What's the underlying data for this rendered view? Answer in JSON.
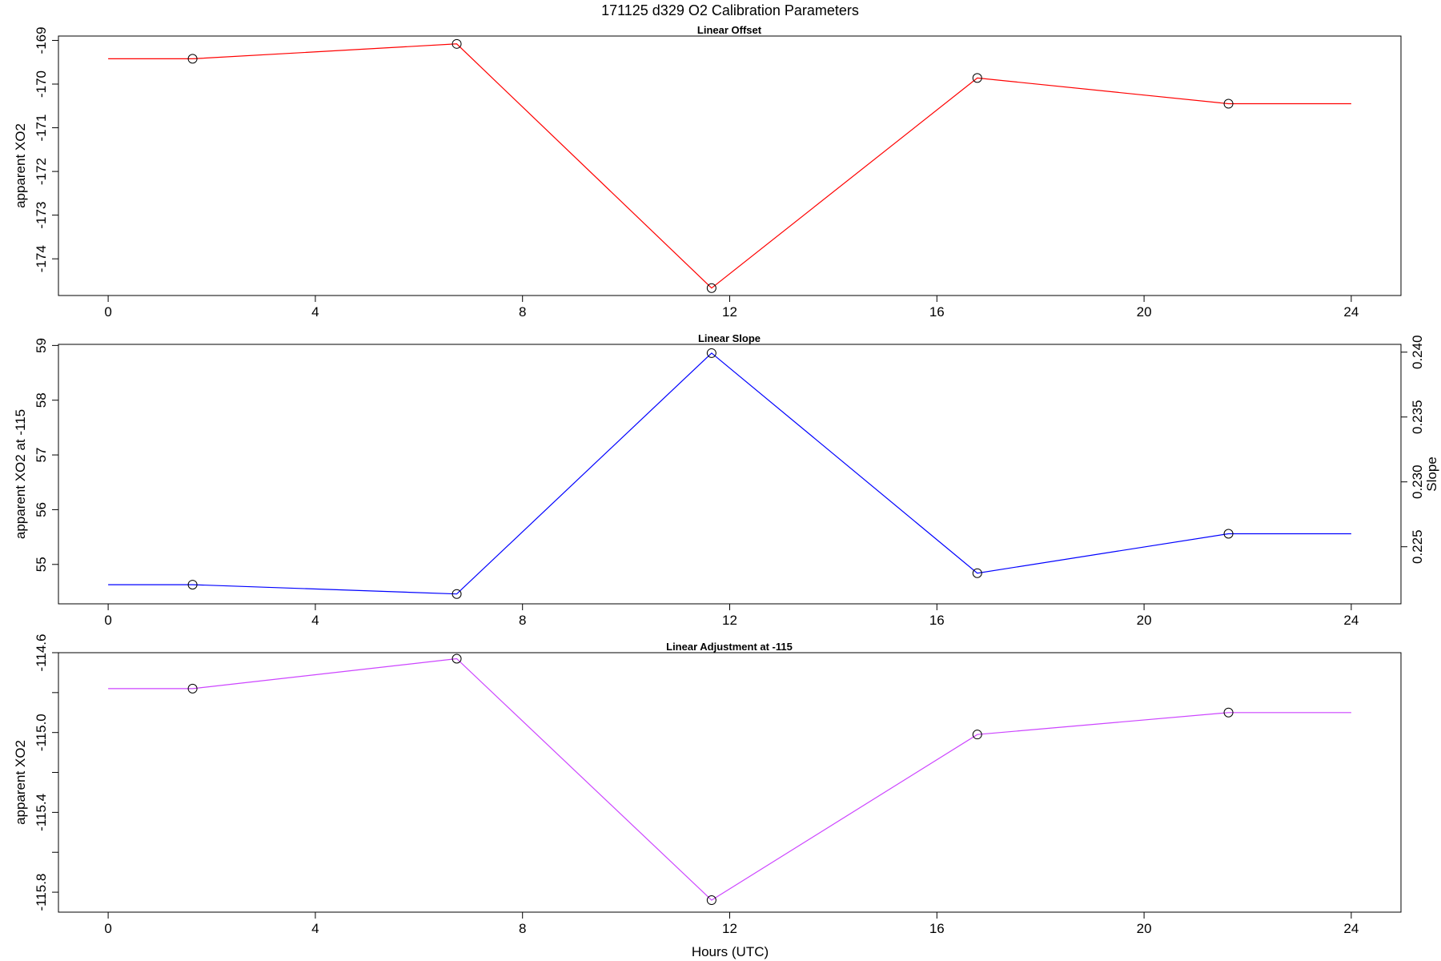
{
  "figure_title": "171125   d329   O2 Calibration Parameters",
  "xlabel": "Hours (UTC)",
  "x_ticks": [
    0,
    4,
    8,
    12,
    16,
    20,
    24
  ],
  "chart_data": [
    {
      "type": "line",
      "title": "Linear Offset",
      "ylabel": "apparent XO2",
      "color": "#ff0000",
      "xlim": [
        -0.96,
        24.96
      ],
      "ylim": [
        -174.84,
        -168.9
      ],
      "y_ticks": [
        -174,
        -173,
        -172,
        -171,
        -170,
        -169
      ],
      "y_tick_labels": [
        "-174",
        "-173",
        "-172",
        "-171",
        "-170",
        "-169"
      ],
      "x": [
        0,
        1.63,
        6.73,
        11.65,
        16.78,
        21.63,
        24
      ],
      "y": [
        -169.42,
        -169.42,
        -169.08,
        -174.67,
        -169.86,
        -170.45,
        -170.45
      ],
      "markers_at": [
        1,
        2,
        3,
        4,
        5
      ]
    },
    {
      "type": "line",
      "title": "Linear Slope",
      "ylabel": "apparent XO2 at -115",
      "y2label": "Slope",
      "color": "#0000ff",
      "xlim": [
        -0.96,
        24.96
      ],
      "ylim": [
        54.28,
        59.02
      ],
      "y_ticks": [
        55,
        56,
        57,
        58,
        59
      ],
      "y_tick_labels": [
        "55",
        "56",
        "57",
        "58",
        "59"
      ],
      "y2_ticks": [
        0.225,
        0.23,
        0.235,
        0.24
      ],
      "y2_tick_labels": [
        "0.225",
        "0.230",
        "0.235",
        "0.240"
      ],
      "y2_ylim": [
        0.2206,
        0.2406
      ],
      "x": [
        0,
        1.63,
        6.73,
        11.65,
        16.78,
        21.63,
        24
      ],
      "y": [
        54.63,
        54.63,
        54.46,
        58.86,
        54.84,
        55.56,
        55.56
      ],
      "markers_at": [
        1,
        2,
        3,
        4,
        5
      ]
    },
    {
      "type": "line",
      "title": "Linear Adjustment at -115",
      "ylabel": "apparent XO2",
      "color": "#cc44ff",
      "xlim": [
        -0.96,
        24.96
      ],
      "ylim": [
        -115.9,
        -114.6
      ],
      "y_ticks": [
        -115.8,
        -115.6,
        -115.4,
        -115.2,
        -115.0,
        -114.8,
        -114.6
      ],
      "y_tick_labels": [
        "-115.8",
        "",
        "-115.4",
        "",
        "-115.0",
        "",
        "-114.6"
      ],
      "x": [
        0,
        1.63,
        6.73,
        11.65,
        16.78,
        21.63,
        24
      ],
      "y": [
        -114.78,
        -114.78,
        -114.63,
        -115.84,
        -115.01,
        -114.9,
        -114.9
      ],
      "markers_at": [
        1,
        2,
        3,
        4,
        5
      ]
    }
  ]
}
